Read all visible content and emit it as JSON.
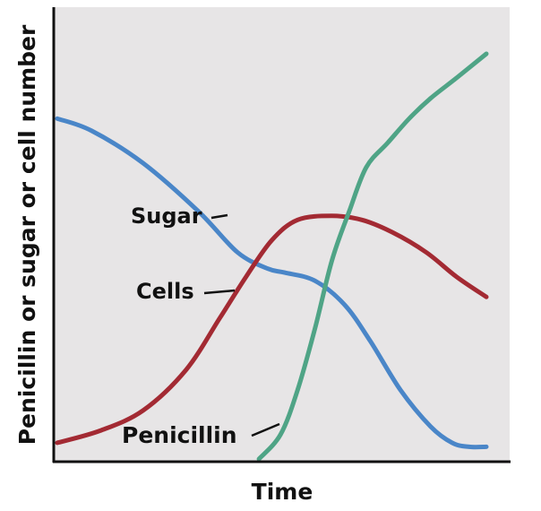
{
  "chart_data": {
    "type": "line",
    "title": "",
    "xlabel": "Time",
    "ylabel": "Penicillin or sugar or cell number",
    "xlim": [
      0,
      100
    ],
    "ylim": [
      0,
      100
    ],
    "grid": false,
    "legend": "inline labels",
    "series": [
      {
        "name": "Sugar",
        "color": "#4a86c8",
        "x": [
          0,
          8,
          20,
          33,
          42,
          49,
          53,
          60,
          67,
          73,
          80,
          87,
          92,
          96,
          100
        ],
        "y": [
          84,
          81,
          73,
          61,
          51,
          47,
          46,
          44,
          38,
          29,
          17,
          8,
          4,
          3,
          3
        ]
      },
      {
        "name": "Cells",
        "color": "#a32a33",
        "x": [
          0,
          10,
          20,
          30,
          38,
          44,
          50,
          56,
          64,
          71,
          78,
          86,
          93,
          100
        ],
        "y": [
          4,
          7,
          12,
          22,
          35,
          45,
          54,
          59,
          60,
          59,
          56,
          51,
          45,
          40
        ]
      },
      {
        "name": "Penicillin",
        "color": "#4fa486",
        "x": [
          47,
          52,
          56,
          60,
          64,
          68,
          72,
          77,
          82,
          87,
          93,
          100
        ],
        "y": [
          0,
          6,
          17,
          32,
          49,
          61,
          72,
          78,
          84,
          89,
          94,
          100
        ]
      }
    ]
  }
}
